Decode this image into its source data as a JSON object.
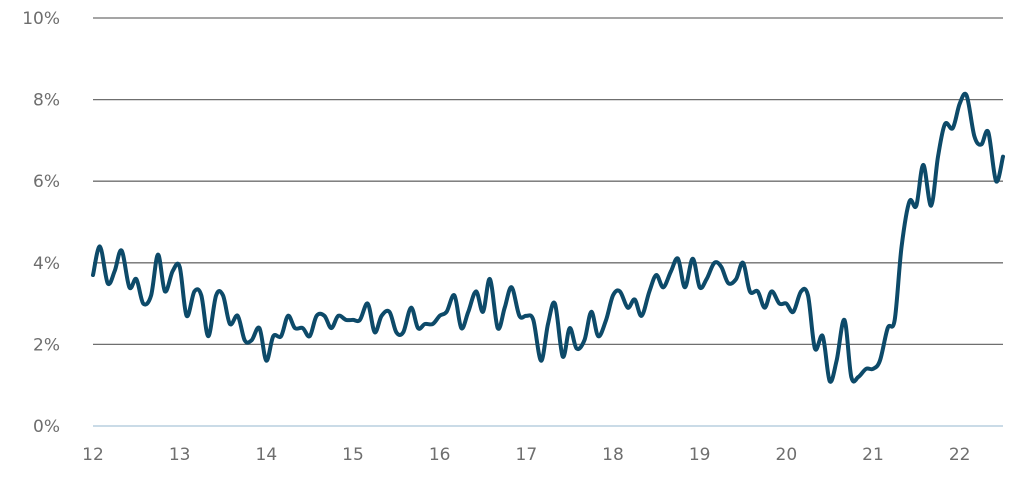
{
  "chart_data": {
    "type": "line",
    "title": "",
    "xlabel": "",
    "ylabel": "",
    "x_ticks": [
      "12",
      "13",
      "14",
      "15",
      "16",
      "17",
      "18",
      "19",
      "20",
      "21",
      "22"
    ],
    "y_ticks": [
      "0%",
      "2%",
      "4%",
      "6%",
      "8%",
      "10%"
    ],
    "xlim": [
      12,
      22.5
    ],
    "ylim": [
      0,
      10
    ],
    "grid": true,
    "legend": "none",
    "line_color": "#0d4a69",
    "series": [
      {
        "x": [
          12.0,
          12.08,
          12.17,
          12.25,
          12.33,
          12.42,
          12.5,
          12.58,
          12.67,
          12.75,
          12.83,
          12.92,
          13.0,
          13.08,
          13.17,
          13.25,
          13.33,
          13.42,
          13.5,
          13.58,
          13.67,
          13.75,
          13.83,
          13.92,
          14.0,
          14.08,
          14.17,
          14.25,
          14.33,
          14.42,
          14.5,
          14.58,
          14.67,
          14.75,
          14.83,
          14.92,
          15.0,
          15.08,
          15.17,
          15.25,
          15.33,
          15.42,
          15.5,
          15.58,
          15.67,
          15.75,
          15.83,
          15.92,
          16.0,
          16.08,
          16.17,
          16.25,
          16.33,
          16.42,
          16.5,
          16.58,
          16.67,
          16.75,
          16.83,
          16.92,
          17.0,
          17.08,
          17.17,
          17.25,
          17.33,
          17.42,
          17.5,
          17.58,
          17.67,
          17.75,
          17.83,
          17.92,
          18.0,
          18.08,
          18.17,
          18.25,
          18.33,
          18.42,
          18.5,
          18.58,
          18.67,
          18.75,
          18.83,
          18.92,
          19.0,
          19.08,
          19.17,
          19.25,
          19.33,
          19.42,
          19.5,
          19.58,
          19.67,
          19.75,
          19.83,
          19.92,
          20.0,
          20.08,
          20.17,
          20.25,
          20.33,
          20.42,
          20.5,
          20.58,
          20.67,
          20.75,
          20.83,
          20.92,
          21.0,
          21.08,
          21.17,
          21.25,
          21.33,
          21.42,
          21.5,
          21.58,
          21.67,
          21.75,
          21.83,
          21.92,
          22.0,
          22.08,
          22.17,
          22.25,
          22.33,
          22.42,
          22.5
        ],
        "y": [
          3.7,
          4.4,
          3.5,
          3.8,
          4.3,
          3.4,
          3.6,
          3.0,
          3.2,
          4.2,
          3.3,
          3.8,
          3.9,
          2.7,
          3.3,
          3.2,
          2.2,
          3.2,
          3.2,
          2.5,
          2.7,
          2.1,
          2.1,
          2.4,
          1.6,
          2.2,
          2.2,
          2.7,
          2.4,
          2.4,
          2.2,
          2.7,
          2.7,
          2.4,
          2.7,
          2.6,
          2.6,
          2.6,
          3.0,
          2.3,
          2.7,
          2.8,
          2.3,
          2.3,
          2.9,
          2.4,
          2.5,
          2.5,
          2.7,
          2.8,
          3.2,
          2.4,
          2.8,
          3.3,
          2.8,
          3.6,
          2.4,
          2.9,
          3.4,
          2.7,
          2.7,
          2.6,
          1.6,
          2.5,
          3.0,
          1.7,
          2.4,
          1.9,
          2.1,
          2.8,
          2.2,
          2.6,
          3.2,
          3.3,
          2.9,
          3.1,
          2.7,
          3.3,
          3.7,
          3.4,
          3.8,
          4.1,
          3.4,
          4.1,
          3.4,
          3.6,
          4.0,
          3.9,
          3.5,
          3.6,
          4.0,
          3.3,
          3.3,
          2.9,
          3.3,
          3.0,
          3.0,
          2.8,
          3.3,
          3.2,
          1.9,
          2.2,
          1.1,
          1.6,
          2.6,
          1.2,
          1.2,
          1.4,
          1.4,
          1.6,
          2.4,
          2.6,
          4.4,
          5.5,
          5.4,
          6.4,
          5.4,
          6.6,
          7.4,
          7.3,
          7.9,
          8.1,
          7.1,
          6.9,
          7.2,
          6.0,
          6.6
        ]
      }
    ]
  }
}
